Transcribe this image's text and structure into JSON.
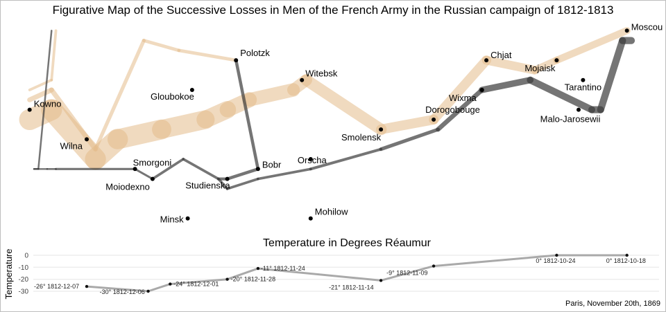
{
  "chart_data": [
    {
      "type": "map",
      "title": "Figurative Map of the Successive Losses in Men of the French Army in the Russian campaign of 1812-1813",
      "colors": {
        "advance": "#e3bb8b",
        "retreat": "#3a3a3a",
        "city": "#000000"
      },
      "x_range": [
        23.8,
        37.7
      ],
      "y_range": [
        53.8,
        55.9
      ],
      "cities": [
        {
          "name": "Kowno",
          "lon": 24.0,
          "lat": 55.0
        },
        {
          "name": "Wilna",
          "lon": 25.3,
          "lat": 54.7
        },
        {
          "name": "Smorgoni",
          "lon": 26.4,
          "lat": 54.4
        },
        {
          "name": "Moiodexno",
          "lon": 26.8,
          "lat": 54.3
        },
        {
          "name": "Gloubokoe",
          "lon": 27.7,
          "lat": 55.2
        },
        {
          "name": "Minsk",
          "lon": 27.6,
          "lat": 53.9
        },
        {
          "name": "Studienska",
          "lon": 28.5,
          "lat": 54.3
        },
        {
          "name": "Polotzk",
          "lon": 28.7,
          "lat": 55.5
        },
        {
          "name": "Bobr",
          "lon": 29.2,
          "lat": 54.4
        },
        {
          "name": "Witebsk",
          "lon": 30.2,
          "lat": 55.3
        },
        {
          "name": "Orscha",
          "lon": 30.4,
          "lat": 54.5
        },
        {
          "name": "Mohilow",
          "lon": 30.4,
          "lat": 53.9
        },
        {
          "name": "Smolensk",
          "lon": 32.0,
          "lat": 54.8
        },
        {
          "name": "Dorogobouge",
          "lon": 33.2,
          "lat": 54.9
        },
        {
          "name": "Wixma",
          "lon": 34.3,
          "lat": 55.2
        },
        {
          "name": "Chjat",
          "lon": 34.4,
          "lat": 55.5
        },
        {
          "name": "Mojaisk",
          "lon": 36.0,
          "lat": 55.5
        },
        {
          "name": "Moscou",
          "lon": 37.6,
          "lat": 55.8
        },
        {
          "name": "Tarantino",
          "lon": 36.6,
          "lat": 55.3
        },
        {
          "name": "Malo-Jarosewii",
          "lon": 36.5,
          "lat": 55.0
        }
      ],
      "advance_path": [
        {
          "lon": 24.0,
          "lat": 54.9,
          "survivors": 340000
        },
        {
          "lon": 24.5,
          "lat": 55.0,
          "survivors": 340000
        },
        {
          "lon": 25.5,
          "lat": 54.5,
          "survivors": 340000
        },
        {
          "lon": 26.0,
          "lat": 54.7,
          "survivors": 320000
        },
        {
          "lon": 27.0,
          "lat": 54.8,
          "survivors": 300000
        },
        {
          "lon": 28.0,
          "lat": 54.9,
          "survivors": 280000
        },
        {
          "lon": 28.5,
          "lat": 55.0,
          "survivors": 240000
        },
        {
          "lon": 29.0,
          "lat": 55.1,
          "survivors": 210000
        },
        {
          "lon": 30.0,
          "lat": 55.2,
          "survivors": 180000
        },
        {
          "lon": 30.3,
          "lat": 55.3,
          "survivors": 175000
        },
        {
          "lon": 32.0,
          "lat": 54.8,
          "survivors": 145000
        },
        {
          "lon": 33.2,
          "lat": 54.9,
          "survivors": 140000
        },
        {
          "lon": 34.4,
          "lat": 55.5,
          "survivors": 127100
        },
        {
          "lon": 35.5,
          "lat": 55.4,
          "survivors": 100000
        },
        {
          "lon": 36.0,
          "lat": 55.5,
          "survivors": 100000
        },
        {
          "lon": 37.6,
          "lat": 55.8,
          "survivors": 100000
        }
      ],
      "advance_branch_north": [
        {
          "lon": 24.0,
          "lat": 55.1,
          "survivors": 60000
        },
        {
          "lon": 24.5,
          "lat": 55.2,
          "survivors": 60000
        },
        {
          "lon": 25.5,
          "lat": 54.6,
          "survivors": 40000
        },
        {
          "lon": 26.6,
          "lat": 55.7,
          "survivors": 33000
        },
        {
          "lon": 27.4,
          "lat": 55.6,
          "survivors": 33000
        },
        {
          "lon": 28.7,
          "lat": 55.5,
          "survivors": 33000
        }
      ],
      "advance_branch_kowno": [
        {
          "lon": 24.0,
          "lat": 55.2,
          "survivors": 22000
        },
        {
          "lon": 24.5,
          "lat": 55.3,
          "survivors": 22000
        },
        {
          "lon": 24.6,
          "lat": 55.8,
          "survivors": 6000
        }
      ],
      "retreat_path": [
        {
          "lon": 37.7,
          "lat": 55.7,
          "survivors": 100000
        },
        {
          "lon": 37.5,
          "lat": 55.7,
          "survivors": 98000
        },
        {
          "lon": 37.0,
          "lat": 55.0,
          "survivors": 97000
        },
        {
          "lon": 36.8,
          "lat": 55.0,
          "survivors": 96000
        },
        {
          "lon": 35.4,
          "lat": 55.3,
          "survivors": 87000
        },
        {
          "lon": 34.3,
          "lat": 55.2,
          "survivors": 55000
        },
        {
          "lon": 33.3,
          "lat": 54.8,
          "survivors": 37000
        },
        {
          "lon": 32.0,
          "lat": 54.6,
          "survivors": 24000
        },
        {
          "lon": 30.4,
          "lat": 54.4,
          "survivors": 20000
        },
        {
          "lon": 29.2,
          "lat": 54.3,
          "survivors": 20000
        },
        {
          "lon": 28.5,
          "lat": 54.2,
          "survivors": 20000
        },
        {
          "lon": 28.3,
          "lat": 54.3,
          "survivors": 20000
        },
        {
          "lon": 27.5,
          "lat": 54.5,
          "survivors": 20000
        },
        {
          "lon": 26.8,
          "lat": 54.3,
          "survivors": 12000
        },
        {
          "lon": 26.4,
          "lat": 54.4,
          "survivors": 14000
        },
        {
          "lon": 24.6,
          "lat": 54.4,
          "survivors": 8000
        },
        {
          "lon": 24.4,
          "lat": 54.4,
          "survivors": 4000
        },
        {
          "lon": 24.2,
          "lat": 54.4,
          "survivors": 4000
        },
        {
          "lon": 24.1,
          "lat": 54.4,
          "survivors": 4000
        }
      ],
      "retreat_branch_polotzk": [
        {
          "lon": 28.7,
          "lat": 55.5,
          "survivors": 30000
        },
        {
          "lon": 29.2,
          "lat": 54.4,
          "survivors": 30000
        },
        {
          "lon": 28.5,
          "lat": 54.3,
          "survivors": 28000
        },
        {
          "lon": 28.3,
          "lat": 54.3,
          "survivors": 28000
        }
      ],
      "retreat_branch_kowno": [
        {
          "lon": 24.1,
          "lat": 54.4,
          "survivors": 6000
        },
        {
          "lon": 24.2,
          "lat": 54.4,
          "survivors": 6000
        },
        {
          "lon": 24.5,
          "lat": 55.8,
          "survivors": 6000
        }
      ]
    },
    {
      "type": "line",
      "title": "Temperature in Degrees Réaumur",
      "ylabel": "Temperature",
      "yticks": [
        0,
        -10,
        -20,
        -30
      ],
      "ylim": [
        -35,
        3
      ],
      "points": [
        {
          "lon": 37.6,
          "temp": 0,
          "label": "0° 1812-10-18"
        },
        {
          "lon": 36.0,
          "temp": 0,
          "label": "0° 1812-10-24"
        },
        {
          "lon": 33.2,
          "temp": -9,
          "label": "-9° 1812-11-09"
        },
        {
          "lon": 32.0,
          "temp": -21,
          "label": "-21° 1812-11-14"
        },
        {
          "lon": 29.2,
          "temp": -11,
          "label": "-11° 1812-11-24"
        },
        {
          "lon": 28.5,
          "temp": -20,
          "label": "-20° 1812-11-28"
        },
        {
          "lon": 27.2,
          "temp": -24,
          "label": "-24° 1812-12-01"
        },
        {
          "lon": 26.7,
          "temp": -30,
          "label": "-30° 1812-12-06"
        },
        {
          "lon": 25.3,
          "temp": -26,
          "label": "-26° 1812-12-07"
        }
      ],
      "line_color": "#a9a9a9"
    }
  ],
  "caption": "Paris, November 20th, 1869"
}
